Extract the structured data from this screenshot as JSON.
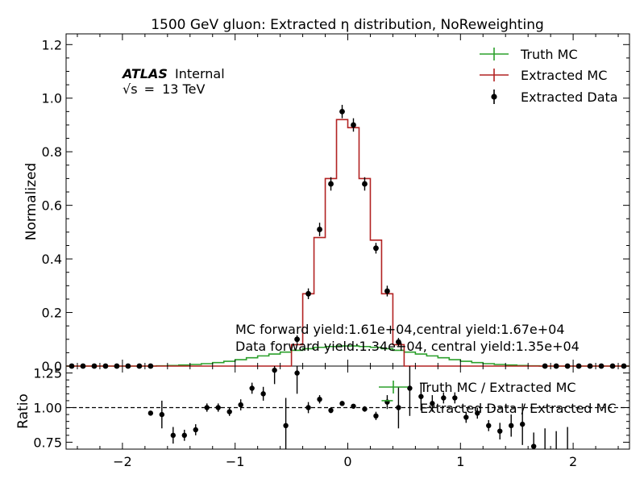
{
  "chart_data": {
    "type": "line",
    "title": "1500 GeV gluon: Extracted η distribution, NoReweighting",
    "experiment_label": {
      "bold": "ATLAS",
      "suffix": "Internal",
      "energy_prefix": "√s",
      "energy_value": "13 TeV"
    },
    "xlim": [
      -2.5,
      2.5
    ],
    "xticks": [
      -2,
      -1,
      0,
      1,
      2
    ],
    "xtick_labels": [
      "−2",
      "−1",
      "0",
      "1",
      "2"
    ],
    "bin_edges": [
      -2.5,
      -2.4,
      -2.3,
      -2.2,
      -2.1,
      -2.0,
      -1.9,
      -1.8,
      -1.7,
      -1.6,
      -1.5,
      -1.4,
      -1.3,
      -1.2,
      -1.1,
      -1.0,
      -0.9,
      -0.8,
      -0.7,
      -0.6,
      -0.5,
      -0.4,
      -0.3,
      -0.2,
      -0.1,
      0.0,
      0.1,
      0.2,
      0.3,
      0.4,
      0.5,
      0.6,
      0.7,
      0.8,
      0.9,
      1.0,
      1.1,
      1.2,
      1.3,
      1.4,
      1.5,
      1.6,
      1.7,
      1.8,
      1.9,
      2.0,
      2.1,
      2.2,
      2.3,
      2.4,
      2.5
    ],
    "main_panel": {
      "ylabel": "Normalized",
      "ylim": [
        0,
        1.24
      ],
      "yticks": [
        0.0,
        0.2,
        0.4,
        0.6,
        0.8,
        1.0,
        1.2
      ],
      "ytick_labels": [
        "0.0",
        "0.2",
        "0.4",
        "0.6",
        "0.8",
        "1.0",
        "1.2"
      ],
      "legend_position": "top-right",
      "series": [
        {
          "name": "Truth MC",
          "kind": "step",
          "color": "#2ca02c",
          "values": [
            0.0,
            0.0,
            0.0,
            0.0,
            0.0,
            0.0,
            0.0,
            0.0,
            0.001,
            0.002,
            0.004,
            0.006,
            0.009,
            0.013,
            0.018,
            0.024,
            0.031,
            0.038,
            0.045,
            0.052,
            0.059,
            0.065,
            0.07,
            0.073,
            0.075,
            0.075,
            0.073,
            0.07,
            0.065,
            0.059,
            0.052,
            0.045,
            0.038,
            0.031,
            0.024,
            0.018,
            0.013,
            0.009,
            0.006,
            0.004,
            0.002,
            0.001,
            0.0,
            0.0,
            0.0,
            0.0,
            0.0,
            0.0,
            0.0,
            0.0
          ]
        },
        {
          "name": "Extracted MC",
          "kind": "step",
          "color": "#b22222",
          "values": [
            0,
            0,
            0,
            0,
            0,
            0,
            0,
            0,
            0,
            0,
            0,
            0,
            0,
            0,
            0,
            0,
            0,
            0,
            0,
            0,
            0.08,
            0.27,
            0.48,
            0.7,
            0.92,
            0.89,
            0.7,
            0.47,
            0.27,
            0.08,
            0,
            0,
            0,
            0,
            0,
            0,
            0,
            0,
            0,
            0,
            0,
            0,
            0,
            0,
            0,
            0,
            0,
            0,
            0,
            0
          ]
        },
        {
          "name": "Extracted Data",
          "kind": "points",
          "color": "#000000",
          "x": [
            -2.45,
            -2.35,
            -2.25,
            -2.15,
            -2.05,
            -1.95,
            -1.85,
            -1.75,
            -0.45,
            -0.35,
            -0.25,
            -0.15,
            -0.05,
            0.05,
            0.15,
            0.25,
            0.35,
            0.45,
            1.75,
            1.85,
            1.95,
            2.05,
            2.15,
            2.25,
            2.35,
            2.45
          ],
          "y": [
            0.0,
            0.0,
            0.0,
            0.0,
            0.0,
            0.0,
            0.0,
            0.0,
            0.1,
            0.27,
            0.51,
            0.68,
            0.95,
            0.9,
            0.68,
            0.44,
            0.28,
            0.09,
            0.0,
            0.0,
            0.0,
            0.0,
            0.0,
            0.0,
            0.0,
            0.0
          ],
          "yerr": [
            0.004,
            0.004,
            0.004,
            0.004,
            0.004,
            0.004,
            0.004,
            0.004,
            0.015,
            0.02,
            0.025,
            0.025,
            0.025,
            0.025,
            0.025,
            0.02,
            0.02,
            0.015,
            0.004,
            0.004,
            0.004,
            0.004,
            0.004,
            0.004,
            0.004,
            0.004
          ]
        }
      ],
      "annotations": [
        "MC forward yield:1.61e+04,central yield:1.67e+04",
        "Data forward yield:1.34e+04, central yield:1.35e+04"
      ]
    },
    "ratio_panel": {
      "ylabel": "Ratio",
      "ylim": [
        0.7,
        1.3
      ],
      "yticks": [
        0.75,
        1.0,
        1.25
      ],
      "ytick_labels": [
        "0.75",
        "1.00",
        "1.25"
      ],
      "reference_line": 1.0,
      "legend_entries": [
        "Truth MC / Extracted MC",
        "Extracted Data / Extracted MC"
      ],
      "truth_ratio": {
        "x": [
          0.35
        ],
        "y": [
          1.05
        ],
        "xerr": 0.05,
        "color": "#2ca02c"
      },
      "data_ratio": {
        "color": "#000000",
        "x": [
          -1.75,
          -1.65,
          -1.55,
          -1.45,
          -1.35,
          -1.25,
          -1.15,
          -1.05,
          -0.95,
          -0.85,
          -0.75,
          -0.65,
          -0.55,
          -0.45,
          -0.35,
          -0.25,
          -0.15,
          -0.05,
          0.05,
          0.15,
          0.25,
          0.35,
          0.45,
          0.55,
          0.65,
          0.75,
          0.85,
          0.95,
          1.05,
          1.15,
          1.25,
          1.35,
          1.45,
          1.55,
          1.65,
          1.75,
          1.85,
          1.95
        ],
        "y": [
          0.96,
          0.95,
          0.8,
          0.8,
          0.84,
          1.0,
          1.0,
          0.97,
          1.02,
          1.14,
          1.1,
          1.27,
          0.87,
          1.25,
          1.0,
          1.06,
          0.98,
          1.03,
          1.01,
          0.99,
          0.94,
          1.04,
          1.0,
          1.14,
          1.08,
          1.03,
          1.07,
          1.07,
          0.93,
          0.96,
          0.87,
          0.83,
          0.87,
          0.88,
          0.72,
          0.7,
          0.68,
          0.66
        ],
        "yerr": [
          0.01,
          0.1,
          0.06,
          0.04,
          0.04,
          0.03,
          0.03,
          0.03,
          0.04,
          0.04,
          0.05,
          0.1,
          0.2,
          0.15,
          0.04,
          0.03,
          0.02,
          0.01,
          0.01,
          0.02,
          0.03,
          0.05,
          0.15,
          0.2,
          0.1,
          0.06,
          0.04,
          0.04,
          0.04,
          0.04,
          0.04,
          0.06,
          0.08,
          0.15,
          0.1,
          0.15,
          0.15,
          0.2
        ]
      }
    }
  }
}
